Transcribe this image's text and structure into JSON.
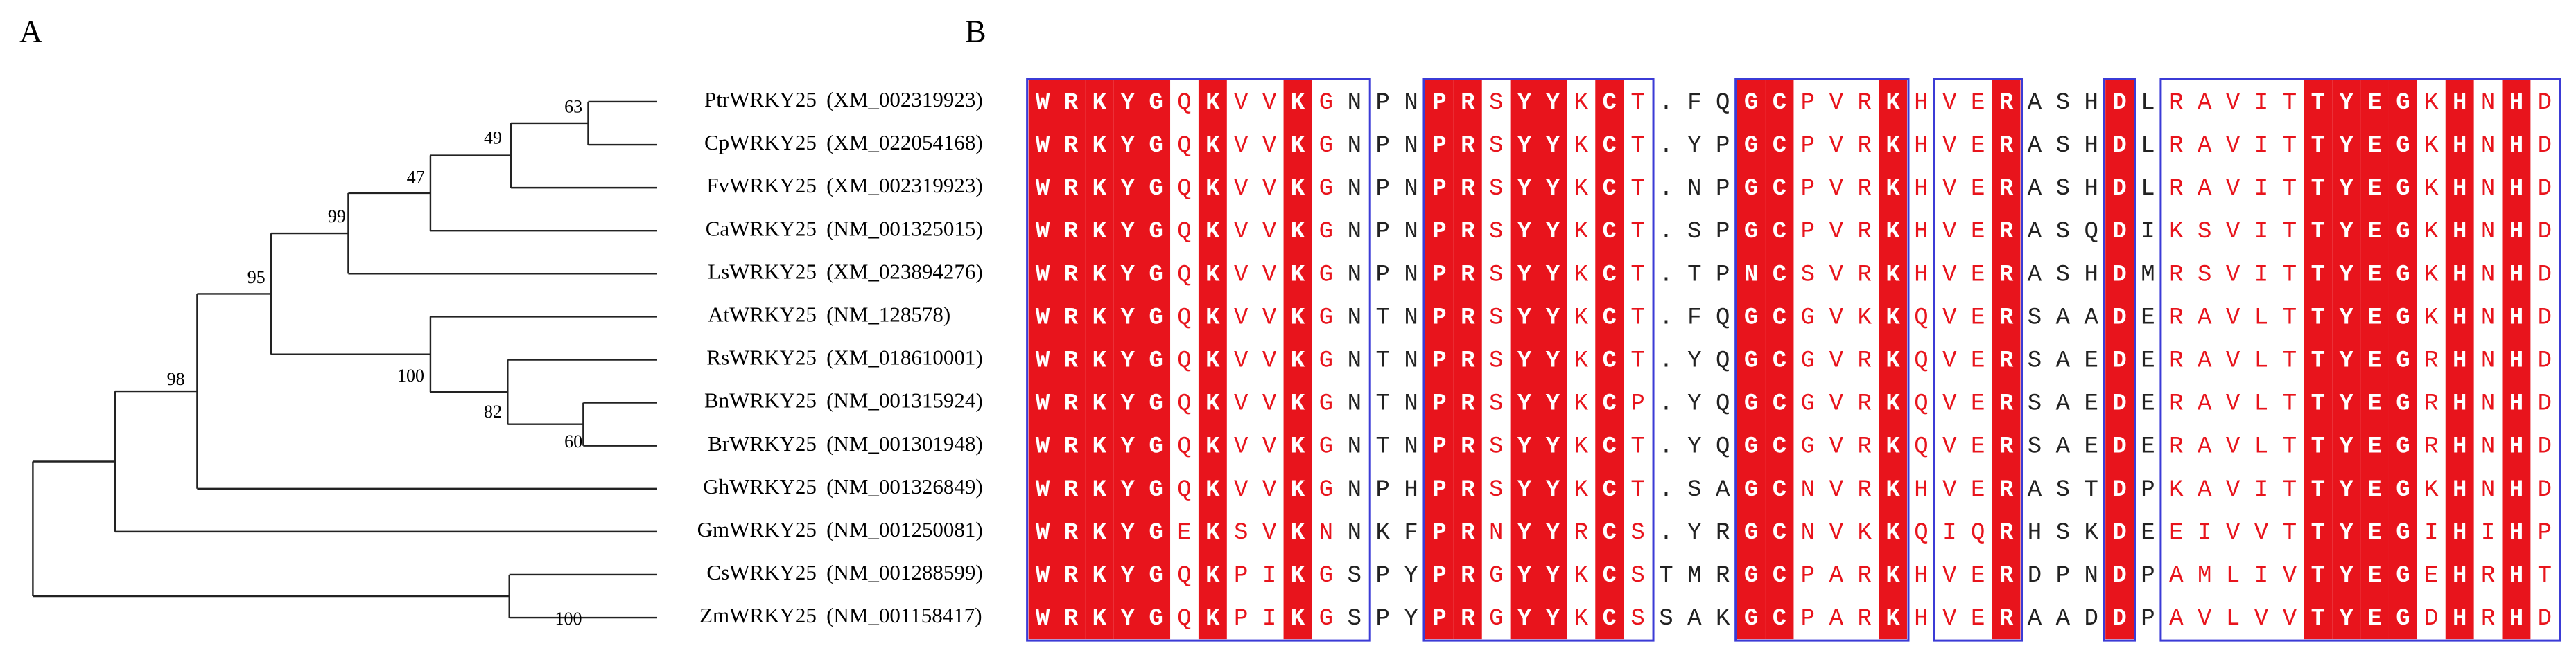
{
  "panels": {
    "a": "A",
    "b": "B"
  },
  "tree": {
    "bootstrap": [
      63,
      49,
      47,
      99,
      100,
      82,
      60,
      95,
      98,
      100
    ]
  },
  "taxa": [
    {
      "name": "PtrWRKY25",
      "accession": "(XM_002319923)",
      "sequence": "WRKYGQKVVKGNPNPRSYYKCT.FQGCPVRKHVERASHDLRAVITTYEGKHNHD"
    },
    {
      "name": "CpWRKY25",
      "accession": "(XM_022054168)",
      "sequence": "WRKYGQKVVKGNPNPRSYYKCT.YPGCPVRKHVERASHDLRAVITTYEGKHNHD"
    },
    {
      "name": "FvWRKY25",
      "accession": "(XM_002319923)",
      "sequence": "WRKYGQKVVKGNPNPRSYYKCT.NPGCPVRKHVERASHDLRAVITTYEGKHNHD"
    },
    {
      "name": "CaWRKY25",
      "accession": "(NM_001325015)",
      "sequence": "WRKYGQKVVKGNPNPRSYYKCT.SPGCPVRKHVERASQDIKSVITTYEGKHNHD"
    },
    {
      "name": "LsWRKY25",
      "accession": "(XM_023894276)",
      "sequence": "WRKYGQKVVKGNPNPRSYYKCT.TPNCSVRKHVERASHDMRSVITTYEGKHNHD"
    },
    {
      "name": "AtWRKY25",
      "accession": "(NM_128578)",
      "sequence": "WRKYGQKVVKGNTNPRSYYKCT.FQGCGVKKQVERSAADERAVLTTYEGKHNHD"
    },
    {
      "name": "RsWRKY25",
      "accession": "(XM_018610001)",
      "sequence": "WRKYGQKVVKGNTNPRSYYKCT.YQGCGVRKQVERSAEDERAVLTTYEGRHNHD"
    },
    {
      "name": "BnWRKY25",
      "accession": "(NM_001315924)",
      "sequence": "WRKYGQKVVKGNTNPRSYYKCP.YQGCGVRKQVERSAEDERAVLTTYEGRHNHD"
    },
    {
      "name": "BrWRKY25",
      "accession": "(NM_001301948)",
      "sequence": "WRKYGQKVVKGNTNPRSYYKCT.YQGCGVRKQVERSAEDERAVLTTYEGRHNHD"
    },
    {
      "name": "GhWRKY25",
      "accession": "(NM_001326849)",
      "sequence": "WRKYGQKVVKGNPHPRSYYKCT.SAGCNVRKHVERASTDPKAVITTYEGKHNHD"
    },
    {
      "name": "GmWRKY25",
      "accession": "(NM_001250081)",
      "sequence": "WRKYGEKSVKNNKFPRNYYRCS.YRGCNVKKQIQRHSKDEEIVVTTYEGIHIHP"
    },
    {
      "name": "CsWRKY25",
      "accession": "(NM_001288599)",
      "sequence": "WRKYGQKPIKGSPYPRGYYKCSTMRGCPARKHVERDPNDPAMLIVTYEGEHRHT"
    },
    {
      "name": "ZmWRKY25",
      "accession": "(NM_001158417)",
      "sequence": "WRKYGQKPIKGSPYPRGYYKCSSAKGCPARKHVERAADDPAVLVVTYEGDHRHD"
    }
  ],
  "alignment": {
    "conservation": "iiiiisissisnnniisiisisnnniisssisssinnninsssssiiiisisis",
    "identical_color": "#e8141c",
    "similar_color": "#e8141c",
    "frame_color": "#3b3bd6"
  }
}
